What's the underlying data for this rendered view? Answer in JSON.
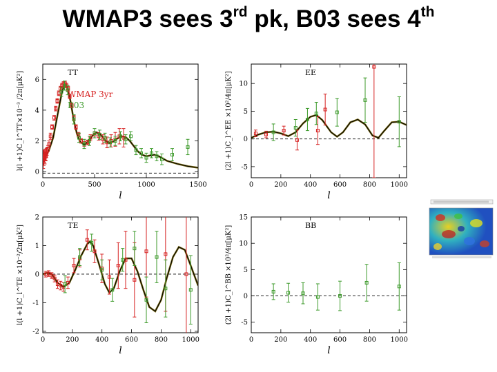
{
  "title": {
    "main": "WMAP3 sees 3",
    "sup1": "rd",
    "middle": " pk, B03 sees 4",
    "sup2": "th"
  },
  "series_names": [
    "WMAP 3yr",
    "B03"
  ],
  "colors": {
    "wmap": "#d62020",
    "b03": "#3c9a2a",
    "model": "#000000"
  },
  "chart_data": [
    {
      "id": "tt",
      "type": "scatter",
      "panel_label": "TT",
      "xlabel": "l",
      "ylabel": "l(l +1)C_l^TT×10⁻³ /2π[μK²]",
      "xlim": [
        0,
        1500
      ],
      "ylim": [
        -0.4,
        7.0
      ],
      "xticks": [
        0,
        500,
        1000,
        1500
      ],
      "yticks": [
        0,
        2,
        4,
        6
      ],
      "legend": [
        "WMAP 3yr",
        "B03"
      ],
      "model": [
        [
          2,
          0.95
        ],
        [
          10,
          0.92
        ],
        [
          30,
          1.0
        ],
        [
          60,
          1.4
        ],
        [
          100,
          2.2
        ],
        [
          140,
          3.6
        ],
        [
          180,
          5.0
        ],
        [
          200,
          5.5
        ],
        [
          220,
          5.65
        ],
        [
          240,
          5.45
        ],
        [
          270,
          4.5
        ],
        [
          300,
          3.3
        ],
        [
          330,
          2.45
        ],
        [
          360,
          1.95
        ],
        [
          400,
          1.75
        ],
        [
          440,
          1.95
        ],
        [
          480,
          2.35
        ],
        [
          520,
          2.55
        ],
        [
          560,
          2.4
        ],
        [
          600,
          2.05
        ],
        [
          640,
          1.85
        ],
        [
          680,
          1.95
        ],
        [
          720,
          2.15
        ],
        [
          760,
          2.3
        ],
        [
          800,
          2.25
        ],
        [
          840,
          2.0
        ],
        [
          880,
          1.65
        ],
        [
          920,
          1.3
        ],
        [
          960,
          1.1
        ],
        [
          1000,
          1.0
        ],
        [
          1040,
          1.05
        ],
        [
          1080,
          1.1
        ],
        [
          1120,
          1.0
        ],
        [
          1160,
          0.85
        ],
        [
          1200,
          0.7
        ],
        [
          1300,
          0.5
        ],
        [
          1400,
          0.35
        ],
        [
          1500,
          0.25
        ]
      ],
      "series": [
        {
          "name": "WMAP 3yr",
          "points": [
            [
              5,
              0.8,
              0.6
            ],
            [
              10,
              0.9,
              0.5
            ],
            [
              15,
              1.0,
              0.4
            ],
            [
              20,
              0.9,
              0.4
            ],
            [
              25,
              1.1,
              0.35
            ],
            [
              30,
              1.0,
              0.3
            ],
            [
              35,
              1.2,
              0.3
            ],
            [
              40,
              1.3,
              0.25
            ],
            [
              50,
              1.5,
              0.2
            ],
            [
              60,
              1.8,
              0.2
            ],
            [
              75,
              2.3,
              0.2
            ],
            [
              90,
              2.9,
              0.15
            ],
            [
              110,
              3.5,
              0.15
            ],
            [
              125,
              4.1,
              0.15
            ],
            [
              140,
              4.6,
              0.15
            ],
            [
              155,
              5.1,
              0.15
            ],
            [
              170,
              5.4,
              0.15
            ],
            [
              185,
              5.6,
              0.15
            ],
            [
              200,
              5.7,
              0.15
            ],
            [
              215,
              5.75,
              0.15
            ],
            [
              230,
              5.6,
              0.15
            ],
            [
              245,
              5.4,
              0.15
            ],
            [
              260,
              4.9,
              0.15
            ],
            [
              280,
              4.3,
              0.15
            ],
            [
              300,
              3.5,
              0.15
            ],
            [
              320,
              2.9,
              0.15
            ],
            [
              345,
              2.4,
              0.15
            ],
            [
              370,
              2.0,
              0.15
            ],
            [
              400,
              1.8,
              0.15
            ],
            [
              430,
              1.9,
              0.15
            ],
            [
              460,
              2.2,
              0.2
            ],
            [
              500,
              2.4,
              0.2
            ],
            [
              540,
              2.3,
              0.25
            ],
            [
              580,
              2.1,
              0.3
            ],
            [
              620,
              1.9,
              0.35
            ],
            [
              660,
              2.0,
              0.4
            ],
            [
              700,
              2.1,
              0.45
            ],
            [
              740,
              2.3,
              0.5
            ],
            [
              780,
              2.2,
              0.6
            ]
          ]
        },
        {
          "name": "B03",
          "points": [
            [
              180,
              5.2,
              0.3
            ],
            [
              210,
              5.6,
              0.3
            ],
            [
              240,
              5.3,
              0.3
            ],
            [
              300,
              3.4,
              0.3
            ],
            [
              350,
              2.2,
              0.3
            ],
            [
              400,
              1.8,
              0.3
            ],
            [
              450,
              2.0,
              0.3
            ],
            [
              500,
              2.5,
              0.3
            ],
            [
              550,
              2.4,
              0.3
            ],
            [
              600,
              2.2,
              0.3
            ],
            [
              650,
              1.9,
              0.3
            ],
            [
              700,
              2.0,
              0.3
            ],
            [
              750,
              2.3,
              0.3
            ],
            [
              800,
              2.1,
              0.3
            ],
            [
              850,
              2.3,
              0.3
            ],
            [
              900,
              1.4,
              0.3
            ],
            [
              950,
              1.2,
              0.3
            ],
            [
              1000,
              0.9,
              0.3
            ],
            [
              1050,
              1.2,
              0.3
            ],
            [
              1100,
              1.0,
              0.3
            ],
            [
              1150,
              0.8,
              0.35
            ],
            [
              1250,
              1.1,
              0.4
            ],
            [
              1400,
              1.6,
              0.5
            ]
          ]
        }
      ]
    },
    {
      "id": "ee",
      "type": "scatter",
      "panel_label": "EE",
      "xlabel": "l",
      "ylabel": "(2l +1)C_l^EE ×10²/4π[μK²]",
      "xlim": [
        0,
        1050
      ],
      "ylim": [
        -7.0,
        13.5
      ],
      "xticks": [
        0,
        200,
        400,
        600,
        800,
        1000
      ],
      "yticks": [
        -5,
        0,
        5,
        10
      ],
      "zero_line": true,
      "model": [
        [
          0,
          0.2
        ],
        [
          50,
          0.8
        ],
        [
          100,
          1.2
        ],
        [
          150,
          1.3
        ],
        [
          200,
          1.0
        ],
        [
          250,
          0.5
        ],
        [
          300,
          1.2
        ],
        [
          350,
          2.8
        ],
        [
          400,
          4.0
        ],
        [
          440,
          4.3
        ],
        [
          480,
          3.4
        ],
        [
          540,
          1.2
        ],
        [
          580,
          0.4
        ],
        [
          620,
          1.2
        ],
        [
          670,
          3.0
        ],
        [
          720,
          3.5
        ],
        [
          770,
          2.6
        ],
        [
          820,
          0.6
        ],
        [
          860,
          0.2
        ],
        [
          900,
          1.5
        ],
        [
          950,
          3.0
        ],
        [
          1000,
          3.1
        ],
        [
          1050,
          2.5
        ]
      ],
      "series": [
        {
          "name": "WMAP 3yr",
          "points": [
            [
              30,
              1.0,
              0.6
            ],
            [
              100,
              0.8,
              0.6
            ],
            [
              220,
              1.5,
              0.8
            ],
            [
              310,
              -0.2,
              1.8
            ],
            [
              450,
              1.5,
              2.5
            ],
            [
              500,
              5.3,
              2.8
            ],
            [
              830,
              13.0,
              20.0
            ]
          ]
        },
        {
          "name": "B03",
          "points": [
            [
              150,
              1.2,
              1.5
            ],
            [
              300,
              2.0,
              1.5
            ],
            [
              380,
              3.5,
              2.0
            ],
            [
              440,
              4.6,
              2.0
            ],
            [
              580,
              4.8,
              2.5
            ],
            [
              770,
              7.0,
              4.0
            ],
            [
              1000,
              3.1,
              4.5
            ]
          ]
        }
      ]
    },
    {
      "id": "te",
      "type": "scatter",
      "panel_label": "TE",
      "xlabel": "l",
      "ylabel": "l(l +1)C_l^TE ×10⁻²/2π[μK²]",
      "xlim": [
        0,
        1050
      ],
      "ylim": [
        -2.05,
        2.0
      ],
      "xticks": [
        0,
        200,
        400,
        600,
        800,
        1000
      ],
      "yticks": [
        -2,
        -1,
        0,
        1,
        2
      ],
      "zero_line": true,
      "model": [
        [
          0,
          0.0
        ],
        [
          30,
          0.05
        ],
        [
          60,
          0.0
        ],
        [
          100,
          -0.3
        ],
        [
          140,
          -0.45
        ],
        [
          180,
          -0.3
        ],
        [
          220,
          0.15
        ],
        [
          260,
          0.65
        ],
        [
          300,
          1.05
        ],
        [
          320,
          1.15
        ],
        [
          340,
          1.0
        ],
        [
          380,
          0.35
        ],
        [
          420,
          -0.35
        ],
        [
          450,
          -0.65
        ],
        [
          480,
          -0.5
        ],
        [
          520,
          0.1
        ],
        [
          560,
          0.55
        ],
        [
          600,
          0.55
        ],
        [
          640,
          0.1
        ],
        [
          680,
          -0.55
        ],
        [
          720,
          -1.15
        ],
        [
          760,
          -1.3
        ],
        [
          800,
          -0.9
        ],
        [
          840,
          -0.1
        ],
        [
          880,
          0.6
        ],
        [
          920,
          0.95
        ],
        [
          960,
          0.85
        ],
        [
          1000,
          0.3
        ],
        [
          1050,
          -0.4
        ]
      ],
      "series": [
        {
          "name": "WMAP 3yr",
          "points": [
            [
              20,
              0.0,
              0.1
            ],
            [
              40,
              0.02,
              0.1
            ],
            [
              60,
              -0.05,
              0.1
            ],
            [
              80,
              -0.15,
              0.12
            ],
            [
              100,
              -0.35,
              0.15
            ],
            [
              120,
              -0.4,
              0.15
            ],
            [
              140,
              -0.45,
              0.15
            ],
            [
              170,
              -0.3,
              0.2
            ],
            [
              210,
              0.3,
              0.25
            ],
            [
              250,
              0.55,
              0.3
            ],
            [
              300,
              1.2,
              0.35
            ],
            [
              350,
              0.8,
              0.4
            ],
            [
              400,
              0.2,
              0.5
            ],
            [
              450,
              -0.1,
              0.6
            ],
            [
              510,
              0.3,
              0.8
            ],
            [
              560,
              0.5,
              1.0
            ],
            [
              620,
              -0.2,
              1.3
            ],
            [
              700,
              0.8,
              1.6
            ],
            [
              830,
              0.7,
              2.0
            ],
            [
              970,
              0.0,
              2.2
            ]
          ]
        },
        {
          "name": "B03",
          "points": [
            [
              150,
              -0.35,
              0.3
            ],
            [
              250,
              0.6,
              0.3
            ],
            [
              330,
              1.1,
              0.3
            ],
            [
              400,
              0.15,
              0.35
            ],
            [
              470,
              -0.55,
              0.4
            ],
            [
              540,
              0.5,
              0.4
            ],
            [
              620,
              0.9,
              0.6
            ],
            [
              700,
              -0.9,
              0.8
            ],
            [
              770,
              0.6,
              0.9
            ],
            [
              830,
              -0.5,
              1.0
            ],
            [
              1000,
              -0.55,
              1.2
            ]
          ]
        }
      ]
    },
    {
      "id": "bb",
      "type": "scatter",
      "panel_label": "BB",
      "xlabel": "l",
      "ylabel": "(2l +1)C_l^BB ×10²/4π[μK²]",
      "xlim": [
        0,
        1050
      ],
      "ylim": [
        -7.0,
        15.0
      ],
      "xticks": [
        0,
        200,
        400,
        600,
        800,
        1000
      ],
      "yticks": [
        -5,
        0,
        5,
        10,
        15
      ],
      "zero_line": true,
      "model": [],
      "series": [
        {
          "name": "B03",
          "points": [
            [
              150,
              0.8,
              1.5
            ],
            [
              250,
              0.6,
              1.8
            ],
            [
              350,
              0.5,
              2.0
            ],
            [
              450,
              -0.2,
              2.5
            ],
            [
              600,
              0.0,
              2.8
            ],
            [
              780,
              2.5,
              3.5
            ],
            [
              1000,
              1.8,
              4.5
            ]
          ]
        }
      ]
    }
  ],
  "thumbnail": {
    "icon": "cmb-sky-map-icon"
  }
}
